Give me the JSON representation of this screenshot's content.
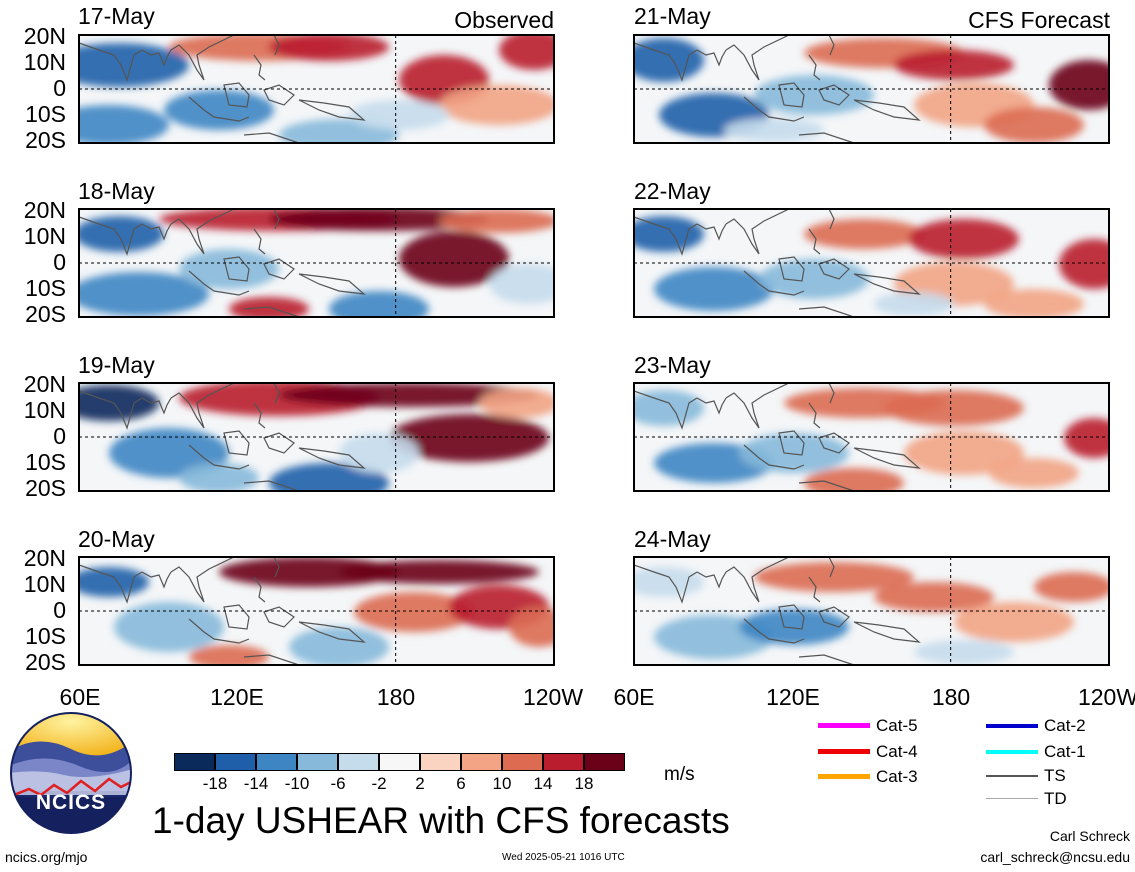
{
  "panels": [
    {
      "date": "17-May",
      "corner": "Observed"
    },
    {
      "date": "18-May",
      "corner": ""
    },
    {
      "date": "19-May",
      "corner": ""
    },
    {
      "date": "20-May",
      "corner": ""
    },
    {
      "date": "21-May",
      "corner": "CFS Forecast"
    },
    {
      "date": "22-May",
      "corner": ""
    },
    {
      "date": "23-May",
      "corner": ""
    },
    {
      "date": "24-May",
      "corner": ""
    }
  ],
  "lat_labels": [
    "20N",
    "10N",
    "0",
    "10S",
    "20S"
  ],
  "lon_labels": [
    "60E",
    "120E",
    "180",
    "120W"
  ],
  "colorbar": {
    "colors": [
      "#0a2a5c",
      "#1f5fa9",
      "#3d86c3",
      "#86b9da",
      "#c5dcec",
      "#f7f7f7",
      "#fbd3c1",
      "#f2a484",
      "#dc6b52",
      "#b91d2e",
      "#6b0019"
    ],
    "labels": [
      "-18",
      "-14",
      "-10",
      "-6",
      "-2",
      "2",
      "6",
      "10",
      "14",
      "18"
    ],
    "unit": "m/s"
  },
  "legend": [
    {
      "label": "Cat-5",
      "color": "#ff00ff",
      "weight": 5
    },
    {
      "label": "Cat-4",
      "color": "#ee0000",
      "weight": 5
    },
    {
      "label": "Cat-3",
      "color": "#ffa500",
      "weight": 5
    },
    {
      "label": "Cat-2",
      "color": "#0000cd",
      "weight": 4
    },
    {
      "label": "Cat-1",
      "color": "#00ffff",
      "weight": 4
    },
    {
      "label": "TS",
      "color": "#555555",
      "weight": 2
    },
    {
      "label": "TD",
      "color": "#aaaaaa",
      "weight": 1
    }
  ],
  "title": "1-day USHEAR with CFS forecasts",
  "logo_text": "NCICS",
  "footer": {
    "left": "ncics.org/mjo",
    "center": "Wed 2025-05-21 1016 UTC",
    "author": "Carl Schreck",
    "email": "carl_schreck@ncsu.edu"
  }
}
